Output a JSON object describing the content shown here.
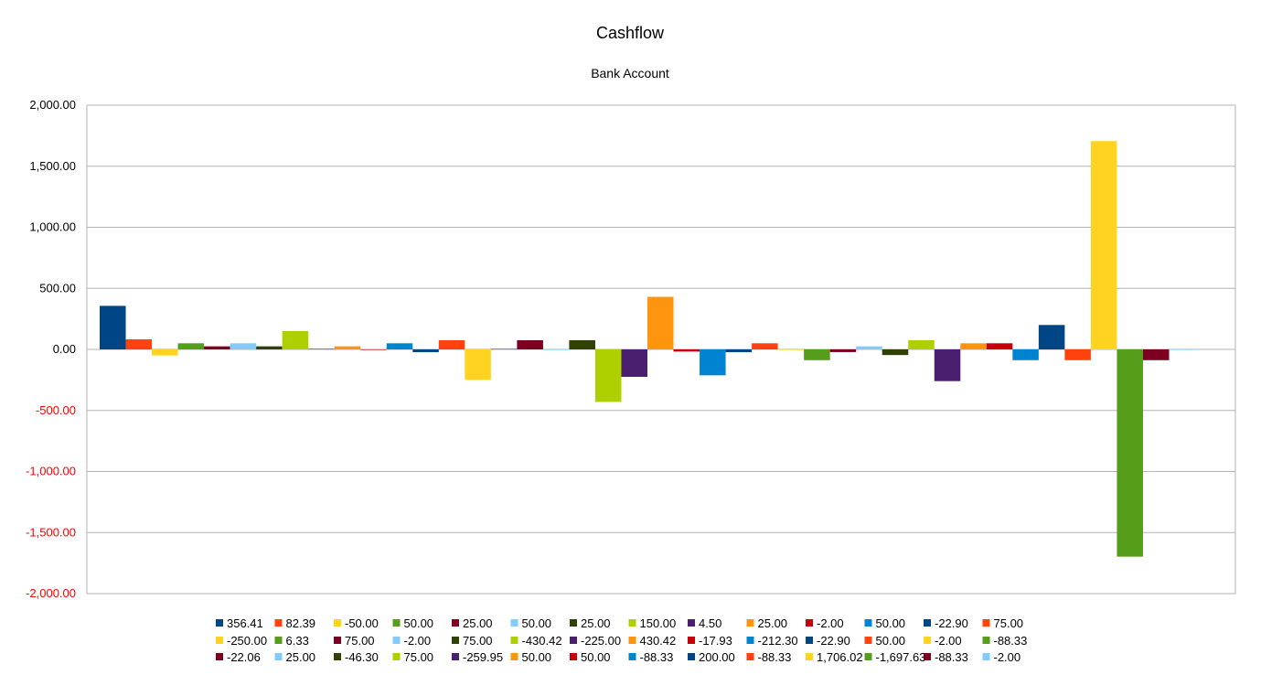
{
  "chart_data": {
    "type": "bar",
    "title": "Cashflow",
    "subtitle": "Bank Account",
    "xlabel": "",
    "ylabel": "",
    "ylim": [
      -2000,
      2000
    ],
    "y_ticks": [
      2000,
      1500,
      1000,
      500,
      0,
      -500,
      -1000,
      -1500,
      -2000
    ],
    "y_tick_labels": [
      "2,000.00",
      "1,500.00",
      "1,000.00",
      "500.00",
      "0.00",
      "-500.00",
      "-1,000.00",
      "-1,500.00",
      "-2,000.00"
    ],
    "negative_tick_color": "#ff0000",
    "grid": true,
    "legend_position": "bottom",
    "series": [
      {
        "name": "356.41",
        "value": 356.41,
        "color": "#004586"
      },
      {
        "name": "82.39",
        "value": 82.39,
        "color": "#ff420e"
      },
      {
        "name": "-50.00",
        "value": -50.0,
        "color": "#ffd320"
      },
      {
        "name": "50.00",
        "value": 50.0,
        "color": "#579d1c"
      },
      {
        "name": "25.00",
        "value": 25.0,
        "color": "#7e0021"
      },
      {
        "name": "50.00",
        "value": 50.0,
        "color": "#83caff"
      },
      {
        "name": "25.00",
        "value": 25.0,
        "color": "#314004"
      },
      {
        "name": "150.00",
        "value": 150.0,
        "color": "#aecf00"
      },
      {
        "name": "4.50",
        "value": 4.5,
        "color": "#4b1f6f"
      },
      {
        "name": "25.00",
        "value": 25.0,
        "color": "#ff950e"
      },
      {
        "name": "-2.00",
        "value": -2.0,
        "color": "#c5000b"
      },
      {
        "name": "50.00",
        "value": 50.0,
        "color": "#0084d1"
      },
      {
        "name": "-22.90",
        "value": -22.9,
        "color": "#004586"
      },
      {
        "name": "75.00",
        "value": 75.0,
        "color": "#ff420e"
      },
      {
        "name": "-250.00",
        "value": -250.0,
        "color": "#ffd320"
      },
      {
        "name": "6.33",
        "value": 6.33,
        "color": "#579d1c"
      },
      {
        "name": "75.00",
        "value": 75.0,
        "color": "#7e0021"
      },
      {
        "name": "-2.00",
        "value": -2.0,
        "color": "#83caff"
      },
      {
        "name": "75.00",
        "value": 75.0,
        "color": "#314004"
      },
      {
        "name": "-430.42",
        "value": -430.42,
        "color": "#aecf00"
      },
      {
        "name": "-225.00",
        "value": -225.0,
        "color": "#4b1f6f"
      },
      {
        "name": "430.42",
        "value": 430.42,
        "color": "#ff950e"
      },
      {
        "name": "-17.93",
        "value": -17.93,
        "color": "#c5000b"
      },
      {
        "name": "-212.30",
        "value": -212.3,
        "color": "#0084d1"
      },
      {
        "name": "-22.90",
        "value": -22.9,
        "color": "#004586"
      },
      {
        "name": "50.00",
        "value": 50.0,
        "color": "#ff420e"
      },
      {
        "name": "-2.00",
        "value": -2.0,
        "color": "#ffd320"
      },
      {
        "name": "-88.33",
        "value": -88.33,
        "color": "#579d1c"
      },
      {
        "name": "-22.06",
        "value": -22.06,
        "color": "#7e0021"
      },
      {
        "name": "25.00",
        "value": 25.0,
        "color": "#83caff"
      },
      {
        "name": "-46.30",
        "value": -46.3,
        "color": "#314004"
      },
      {
        "name": "75.00",
        "value": 75.0,
        "color": "#aecf00"
      },
      {
        "name": "-259.95",
        "value": -259.95,
        "color": "#4b1f6f"
      },
      {
        "name": "50.00",
        "value": 50.0,
        "color": "#ff950e"
      },
      {
        "name": "50.00",
        "value": 50.0,
        "color": "#c5000b"
      },
      {
        "name": "-88.33",
        "value": -88.33,
        "color": "#0084d1"
      },
      {
        "name": "200.00",
        "value": 200.0,
        "color": "#004586"
      },
      {
        "name": "-88.33",
        "value": -88.33,
        "color": "#ff420e"
      },
      {
        "name": "1,706.02",
        "value": 1706.02,
        "color": "#ffd320"
      },
      {
        "name": "-1,697.63",
        "value": -1697.63,
        "color": "#579d1c"
      },
      {
        "name": "-88.33",
        "value": -88.33,
        "color": "#7e0021"
      },
      {
        "name": "-2.00",
        "value": -2.0,
        "color": "#83caff"
      }
    ]
  }
}
